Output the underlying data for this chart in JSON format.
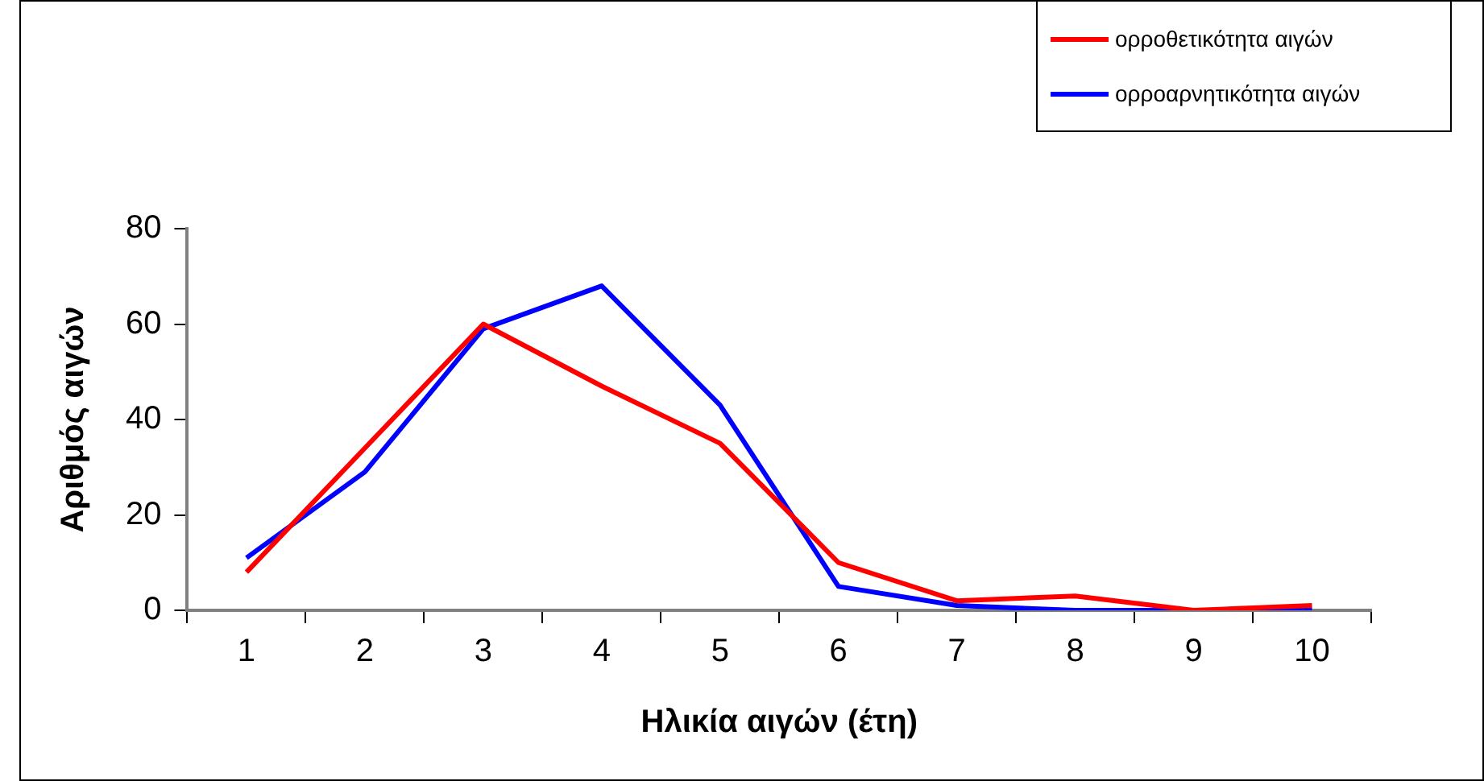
{
  "chart_data": {
    "type": "line",
    "xlabel": "Ηλικία αιγών (έτη)",
    "ylabel": "Αριθμός αιγών",
    "categories": [
      "1",
      "2",
      "3",
      "4",
      "5",
      "6",
      "7",
      "8",
      "9",
      "10"
    ],
    "series": [
      {
        "name": "ορροθετικότητα αιγών",
        "color": "#ff0000",
        "values": [
          8,
          34,
          60,
          47,
          35,
          10,
          2,
          3,
          0,
          1
        ]
      },
      {
        "name": "ορροαρνητικότητα αιγών",
        "color": "#0000ff",
        "values": [
          11,
          29,
          59,
          68,
          43,
          5,
          1,
          0,
          0,
          0
        ]
      }
    ],
    "ylim": [
      0,
      80
    ],
    "yticks": [
      0,
      20,
      40,
      60,
      80
    ],
    "grid": false,
    "legend": "top right",
    "marker": "none",
    "line_style": "solid"
  }
}
